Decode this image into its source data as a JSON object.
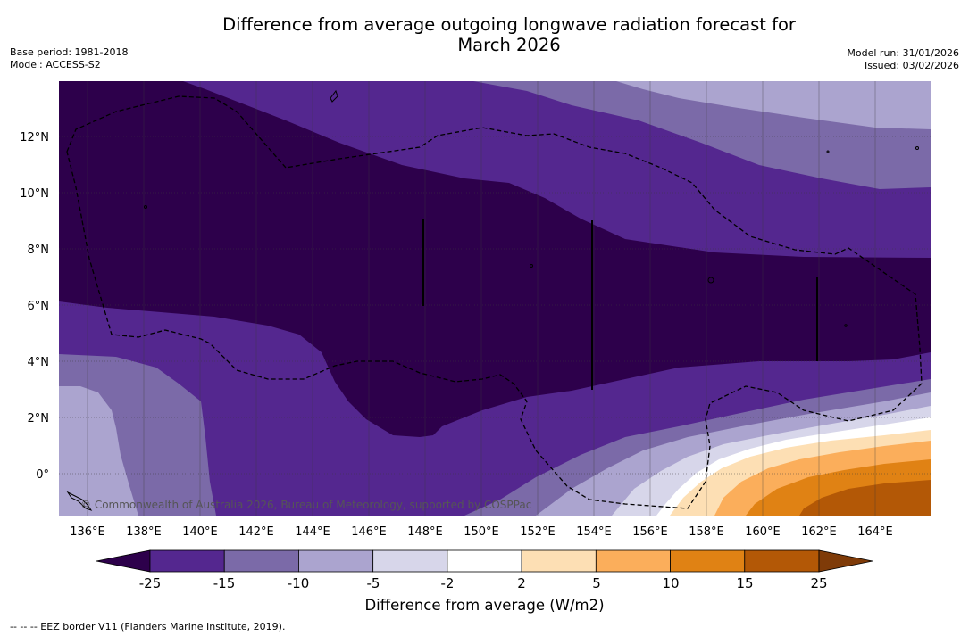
{
  "title": {
    "line1": "Difference from average outgoing longwave radiation forecast for",
    "line2": "March 2026"
  },
  "info_left": {
    "base_period": "Base period: 1981-2018",
    "model": "Model: ACCESS-S2"
  },
  "info_right": {
    "model_run": "Model run: 31/01/2026",
    "issued": "Issued: 03/02/2026"
  },
  "map": {
    "lon_labels": [
      "136°E",
      "138°E",
      "140°E",
      "142°E",
      "144°E",
      "146°E",
      "148°E",
      "150°E",
      "152°E",
      "154°E",
      "156°E",
      "158°E",
      "160°E",
      "162°E",
      "164°E"
    ],
    "lat_labels": [
      "12°N",
      "10°N",
      "8°N",
      "6°N",
      "4°N",
      "2°N",
      "0°"
    ],
    "copyright": "© Commonwealth of Australia 2026, Bureau of Meteorology, supported by COSPPac"
  },
  "colorbar": {
    "ticks": [
      "-25",
      "-15",
      "-10",
      "-5",
      "-2",
      "2",
      "5",
      "10",
      "15",
      "25"
    ],
    "colors": [
      "#54278f",
      "#7b6aa8",
      "#aba4cf",
      "#d7d6ea",
      "#ffffff",
      "#fddfb4",
      "#fbae5b",
      "#e08214",
      "#b35806"
    ],
    "under_color": "#2d004b",
    "over_color": "#7f3b08",
    "title": "Difference from average (W/m2)"
  },
  "footer": "--  --  -- EEZ border V11 (Flanders Marine Institute, 2019)."
}
